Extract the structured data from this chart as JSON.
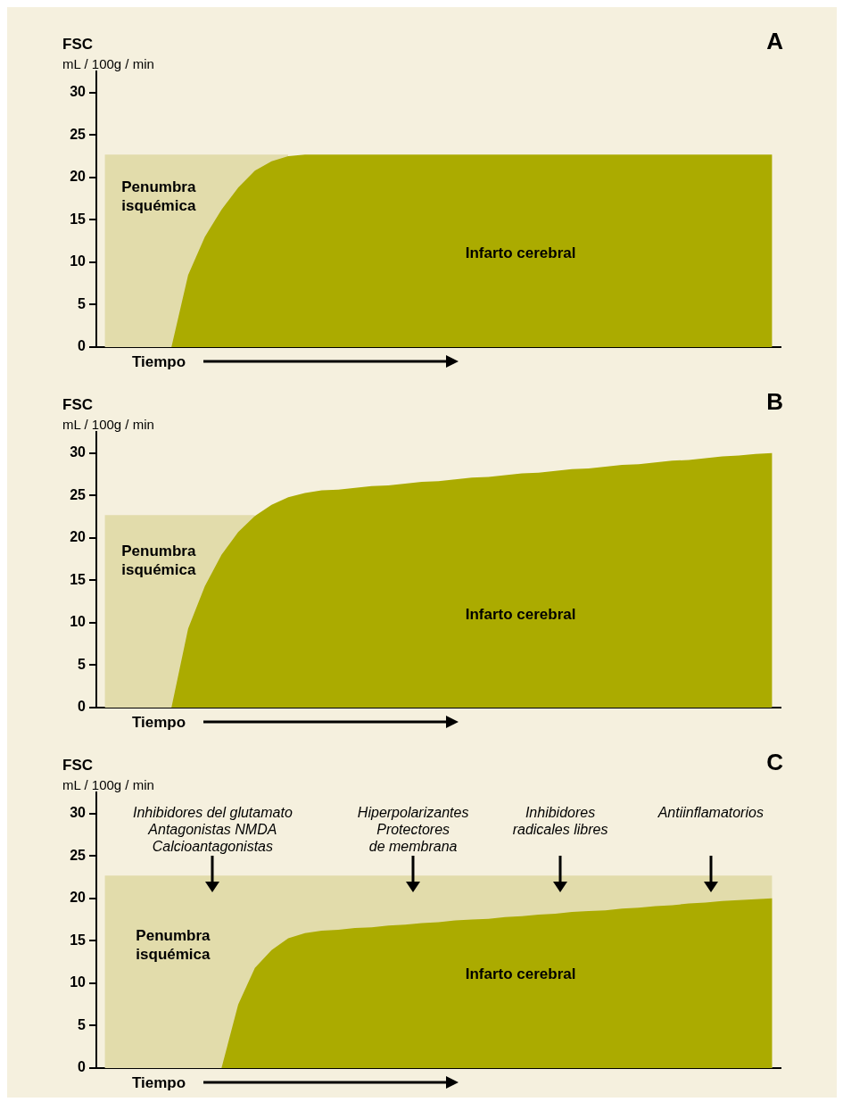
{
  "chart_data": [
    {
      "type": "area",
      "title": "A",
      "ylabel": "FSC\nmL / 100g / min",
      "xlabel": "Tiempo",
      "categories": [
        null,
        null,
        null,
        null,
        null,
        null,
        null,
        null,
        null,
        null,
        null,
        null,
        null,
        null,
        null,
        null,
        null,
        null,
        null,
        null,
        null,
        null,
        null,
        null,
        null,
        null,
        null,
        null,
        null,
        null,
        null,
        null,
        null,
        null,
        null,
        null,
        null,
        null,
        null,
        null,
        null
      ],
      "series": [
        {
          "name": "Penumbra isquémica",
          "color": "#e2dcab",
          "values": [
            22.7,
            22.7,
            22.7,
            22.7,
            22.7,
            22.7,
            22.7,
            22.7,
            22.7,
            22.7,
            22.7,
            22.7,
            null,
            null,
            null,
            null,
            null,
            null,
            null,
            null,
            null,
            null,
            null,
            null,
            null,
            null,
            null,
            null,
            null,
            null,
            null,
            null,
            null,
            null,
            null,
            null,
            null,
            null,
            null,
            null,
            null
          ]
        },
        {
          "name": "Infarto cerebral",
          "color": "#abab00",
          "values": [
            0,
            0,
            0,
            0,
            0,
            8.5,
            13,
            16.2,
            18.8,
            20.8,
            21.9,
            22.5,
            22.7,
            22.7,
            22.7,
            22.7,
            22.7,
            22.7,
            22.7,
            22.7,
            22.7,
            22.7,
            22.7,
            22.7,
            22.7,
            22.7,
            22.7,
            22.7,
            22.7,
            22.7,
            22.7,
            22.7,
            22.7,
            22.7,
            22.7,
            22.7,
            22.7,
            22.7,
            22.7,
            22.7,
            22.7
          ]
        }
      ],
      "ylim": [
        0,
        32.5
      ],
      "yticks": [
        0,
        5,
        10,
        15,
        20,
        25,
        30
      ],
      "grid": false,
      "legend": false,
      "tick_labels": "y"
    },
    {
      "type": "area",
      "title": "B",
      "ylabel": "FSC\nmL / 100g / min",
      "xlabel": "Tiempo",
      "categories": [
        null,
        null,
        null,
        null,
        null,
        null,
        null,
        null,
        null,
        null,
        null,
        null,
        null,
        null,
        null,
        null,
        null,
        null,
        null,
        null,
        null,
        null,
        null,
        null,
        null,
        null,
        null,
        null,
        null,
        null,
        null,
        null,
        null,
        null,
        null,
        null,
        null,
        null,
        null,
        null,
        null
      ],
      "series": [
        {
          "name": "Penumbra isquémica",
          "color": "#e2dcab",
          "values": [
            22.7,
            22.7,
            22.7,
            22.7,
            22.7,
            22.7,
            22.7,
            22.7,
            22.7,
            22.7,
            null,
            null,
            null,
            null,
            null,
            null,
            null,
            null,
            null,
            null,
            null,
            null,
            null,
            null,
            null,
            null,
            null,
            null,
            null,
            null,
            null,
            null,
            null,
            null,
            null,
            null,
            null,
            null,
            null,
            null,
            null
          ]
        },
        {
          "name": "Infarto cerebral",
          "color": "#abab00",
          "values": [
            0,
            0,
            0,
            0,
            0,
            9.3,
            14.3,
            18,
            20.7,
            22.6,
            23.9,
            24.8,
            25.3,
            25.6,
            25.7,
            25.9,
            26.1,
            26.2,
            26.4,
            26.6,
            26.7,
            26.9,
            27.1,
            27.2,
            27.4,
            27.6,
            27.7,
            27.9,
            28.1,
            28.2,
            28.4,
            28.6,
            28.7,
            28.9,
            29.1,
            29.2,
            29.4,
            29.6,
            29.7,
            29.9,
            30.0
          ]
        }
      ],
      "ylim": [
        0,
        32.5
      ],
      "yticks": [
        0,
        5,
        10,
        15,
        20,
        25,
        30
      ],
      "grid": false,
      "legend": false,
      "tick_labels": "y"
    },
    {
      "type": "area",
      "title": "C",
      "ylabel": "FSC\nmL / 100g / min",
      "xlabel": "Tiempo",
      "categories": [
        null,
        null,
        null,
        null,
        null,
        null,
        null,
        null,
        null,
        null,
        null,
        null,
        null,
        null,
        null,
        null,
        null,
        null,
        null,
        null,
        null,
        null,
        null,
        null,
        null,
        null,
        null,
        null,
        null,
        null,
        null,
        null,
        null,
        null,
        null,
        null,
        null,
        null,
        null,
        null,
        null
      ],
      "series": [
        {
          "name": "Penumbra isquémica",
          "color": "#e2dcab",
          "values": [
            22.7,
            22.7,
            22.7,
            22.7,
            22.7,
            22.7,
            22.7,
            22.7,
            22.7,
            22.7,
            22.7,
            22.7,
            22.7,
            22.7,
            22.7,
            22.7,
            22.7,
            22.7,
            22.7,
            22.7,
            22.7,
            22.7,
            22.7,
            22.7,
            22.7,
            22.7,
            22.7,
            22.7,
            22.7,
            22.7,
            22.7,
            22.7,
            22.7,
            22.7,
            22.7,
            22.7,
            22.7,
            22.7,
            22.7,
            22.7,
            22.7
          ]
        },
        {
          "name": "Infarto cerebral",
          "color": "#abab00",
          "values": [
            0,
            0,
            0,
            0,
            0,
            0,
            0,
            0,
            7.5,
            11.8,
            13.9,
            15.3,
            15.9,
            16.2,
            16.3,
            16.5,
            16.6,
            16.8,
            16.9,
            17.1,
            17.2,
            17.4,
            17.5,
            17.6,
            17.8,
            17.9,
            18.1,
            18.2,
            18.4,
            18.5,
            18.6,
            18.8,
            18.9,
            19.1,
            19.2,
            19.4,
            19.5,
            19.7,
            19.8,
            19.9,
            20.0
          ]
        }
      ],
      "annotations": [
        "Inhibidores del glutamato\nAntagonistas NMDA\nCalcioantagonistas",
        "Hiperpolarizantes\nProtectores\nde membrana",
        "Inhibidores\nradicales libres",
        "Antiinflamatorios"
      ],
      "ylim": [
        0,
        32.5
      ],
      "yticks": [
        0,
        5,
        10,
        15,
        20,
        25,
        30
      ],
      "grid": false,
      "legend": false,
      "tick_labels": "y"
    }
  ]
}
